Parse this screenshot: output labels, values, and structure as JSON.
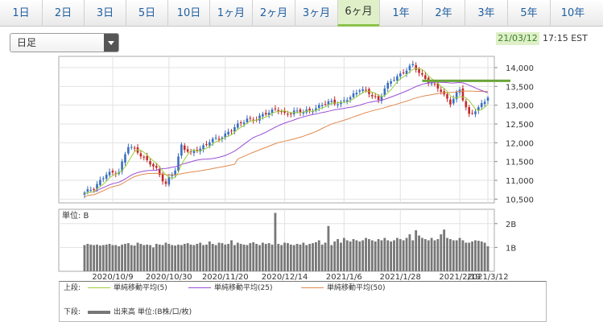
{
  "tabs": [
    {
      "label": "1日",
      "active": false
    },
    {
      "label": "2日",
      "active": false
    },
    {
      "label": "3日",
      "active": false
    },
    {
      "label": "5日",
      "active": false
    },
    {
      "label": "10日",
      "active": false
    },
    {
      "label": "1ヶ月",
      "active": false
    },
    {
      "label": "2ヶ月",
      "active": false
    },
    {
      "label": "3ヶ月",
      "active": false
    },
    {
      "label": "6ヶ月",
      "active": true
    },
    {
      "label": "1年",
      "active": false
    },
    {
      "label": "2年",
      "active": false
    },
    {
      "label": "3年",
      "active": false
    },
    {
      "label": "5年",
      "active": false
    },
    {
      "label": "10年",
      "active": false
    }
  ],
  "period_select": {
    "value": "日足"
  },
  "as_of": {
    "date": "21/03/12",
    "time": "17:15 EST"
  },
  "colors": {
    "up": "#3a6fbf",
    "down": "#c42a2a",
    "ma5": "#9fcf3a",
    "ma25": "#9a4fd6",
    "ma50": "#e08a50",
    "volume": "#777777",
    "level": "#6aa63a"
  },
  "legend": {
    "upper_label": "上段:",
    "lower_label": "下段:",
    "ma5": "単純移動平均(5)",
    "ma25": "単純移動平均(25)",
    "ma50": "単純移動平均(50)",
    "volume": "出来高 単位:(B株/口/枚)"
  },
  "chart_data": [
    {
      "type": "candlestick",
      "x_dates": [
        "2020/10/9",
        "2020/10/30",
        "2020/11/20",
        "2020/12/14",
        "2021/1/6",
        "2021/1/28",
        "2021/2/19",
        "2021/3/12"
      ],
      "x_labels_shown": [
        "2020/10/9",
        "2020/10/30",
        "2020/11/20",
        "2020/12/14",
        "2021/1/6",
        "2021/1/28",
        "2021/2/19",
        "2021/3/12"
      ],
      "y_ticks": [
        "14,000",
        "13,500",
        "13,000",
        "12,500",
        "12,000",
        "11,500",
        "11,000",
        "10,500"
      ],
      "ylim": [
        10400,
        14300
      ],
      "grid": true,
      "close_anchors": [
        [
          0,
          10650
        ],
        [
          3,
          10820
        ],
        [
          7,
          11150
        ],
        [
          11,
          11250
        ],
        [
          14,
          11900
        ],
        [
          17,
          11780
        ],
        [
          20,
          11500
        ],
        [
          23,
          11300
        ],
        [
          26,
          10900
        ],
        [
          29,
          11280
        ],
        [
          31,
          11950
        ],
        [
          34,
          11700
        ],
        [
          37,
          11850
        ],
        [
          40,
          12050
        ],
        [
          43,
          12100
        ],
        [
          46,
          12300
        ],
        [
          49,
          12450
        ],
        [
          52,
          12650
        ],
        [
          55,
          12600
        ],
        [
          58,
          12800
        ],
        [
          61,
          12900
        ],
        [
          64,
          12750
        ],
        [
          67,
          12850
        ],
        [
          70,
          12800
        ],
        [
          73,
          12900
        ],
        [
          76,
          13000
        ],
        [
          79,
          13100
        ],
        [
          82,
          13050
        ],
        [
          85,
          13200
        ],
        [
          88,
          13450
        ],
        [
          91,
          13300
        ],
        [
          94,
          13150
        ],
        [
          96,
          13450
        ],
        [
          99,
          13700
        ],
        [
          102,
          13900
        ],
        [
          105,
          14050
        ],
        [
          108,
          13800
        ],
        [
          111,
          13550
        ],
        [
          114,
          13400
        ],
        [
          117,
          13050
        ],
        [
          120,
          13400
        ],
        [
          123,
          12750
        ],
        [
          126,
          12900
        ],
        [
          129,
          13250
        ]
      ],
      "ma_lengths": [
        5,
        25,
        50
      ],
      "level_line": 13650
    },
    {
      "type": "bar",
      "title": "単位: B",
      "y_ticks": [
        "2B",
        "1B"
      ],
      "ylim": [
        0,
        2.6
      ],
      "grid": true,
      "values": [
        1.1,
        1.15,
        1.12,
        1.1,
        1.12,
        1.08,
        1.1,
        1.12,
        1.15,
        1.1,
        1.1,
        1.05,
        1.12,
        1.15,
        1.18,
        1.1,
        1.08,
        1.2,
        1.15,
        1.1,
        1.12,
        1.1,
        1.0,
        1.15,
        1.12,
        1.1,
        1.2,
        1.15,
        1.1,
        1.08,
        1.12,
        1.1,
        1.15,
        1.18,
        1.12,
        1.1,
        1.15,
        1.2,
        1.1,
        1.12,
        1.25,
        1.15,
        1.1,
        1.2,
        1.18,
        1.12,
        1.15,
        1.3,
        1.1,
        1.2,
        1.15,
        1.12,
        1.1,
        1.18,
        1.22,
        1.15,
        1.1,
        1.2,
        1.15,
        1.18,
        1.12,
        2.45,
        1.15,
        1.1,
        1.2,
        1.18,
        1.12,
        1.1,
        1.15,
        1.12,
        1.2,
        1.1,
        1.15,
        1.18,
        1.22,
        1.3,
        1.12,
        1.2,
        1.15,
        1.1,
        1.25,
        1.35,
        1.2,
        1.4,
        1.3,
        1.25,
        1.35,
        1.3,
        1.25,
        1.3,
        1.4,
        1.35,
        1.3,
        1.25,
        1.35,
        1.3,
        1.4,
        1.3,
        1.25,
        1.3,
        1.4,
        1.35,
        1.3,
        1.4,
        1.35,
        1.3,
        1.45,
        1.5,
        1.4,
        1.35,
        1.3,
        1.4,
        1.3,
        1.35,
        1.45,
        1.3,
        1.4,
        1.35,
        1.3,
        1.3,
        1.4,
        1.3,
        1.2,
        1.2,
        1.25,
        1.3,
        1.28,
        1.25,
        1.2,
        1.05
      ],
      "spikes": {
        "78": 1.9,
        "104": 1.55,
        "106": 1.72,
        "114": 1.55,
        "115": 1.75
      }
    }
  ]
}
